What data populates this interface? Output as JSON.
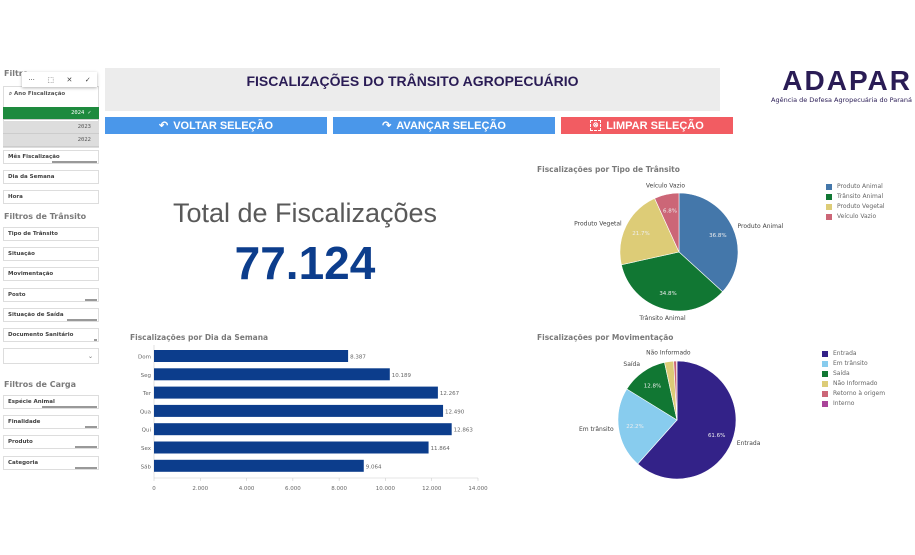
{
  "sidebar": {
    "title": "Filtro",
    "listbox": {
      "search_label": "Ano Fiscalização",
      "items": [
        {
          "label": "2024",
          "selected": true
        },
        {
          "label": "2023",
          "selected": false
        },
        {
          "label": "2022",
          "selected": false
        }
      ]
    },
    "toolbar": {
      "more": "···",
      "select": "⬚",
      "cancel": "✕",
      "confirm": "✓"
    },
    "filters": [
      "Mês Fiscalização",
      "Dia da Semana",
      "Hora"
    ],
    "transit_title": "Filtros de Trânsito",
    "transit_filters": [
      "Tipo de Trânsito",
      "Situação",
      "Movimentação",
      "Posto",
      "Situação de Saída",
      "Documento Sanitário"
    ],
    "dropdown_value": "",
    "cargo_title": "Filtros de Carga",
    "cargo_filters": [
      "Espécie Animal",
      "Finalidade",
      "Produto",
      "Categoria"
    ]
  },
  "header": {
    "title": "FISCALIZAÇÕES DO TRÂNSITO AGROPECUÁRIO"
  },
  "logo": {
    "name": "ADAPAR",
    "subtitle": "Agência de Defesa Agropecuária do Paraná"
  },
  "buttons": {
    "back": "VOLTAR SELEÇÃO",
    "forward": "AVANÇAR SELEÇÃO",
    "clear": "LIMPAR SELEÇÃO"
  },
  "colors": {
    "green": "#1e8a3e",
    "blue_btn": "#4a97ea",
    "red_btn": "#f25c62",
    "navy": "#0c3d8c",
    "title_bg": "#ececec"
  },
  "kpi": {
    "label": "Total de Fiscalizações",
    "value": "77.124"
  },
  "chart_data": [
    {
      "type": "bar",
      "orientation": "horizontal",
      "title": "Fiscalizações por Dia da Semana",
      "categories": [
        "Dom",
        "Seg",
        "Ter",
        "Qua",
        "Qui",
        "Sex",
        "Sáb"
      ],
      "values": [
        8387,
        10189,
        12267,
        12490,
        12863,
        11864,
        9064
      ],
      "value_labels": [
        "8.387",
        "10.189",
        "12.267",
        "12.490",
        "12.863",
        "11.864",
        "9.064"
      ],
      "xlim": [
        0,
        14000
      ],
      "ticks": [
        "0",
        "2.000",
        "4.000",
        "6.000",
        "8.000",
        "10.000",
        "12.000",
        "14.000"
      ],
      "color": "#0c3d8c"
    },
    {
      "type": "pie",
      "title": "Fiscalizações por Tipo de Trânsito",
      "legend": "right",
      "slices": [
        {
          "name": "Produto Animal",
          "value": 36.8,
          "label": "36.8%",
          "color": "#4477aa"
        },
        {
          "name": "Trânsito Animal",
          "value": 34.8,
          "label": "34.8%",
          "color": "#117733"
        },
        {
          "name": "Produto Vegetal",
          "value": 21.7,
          "label": "21.7%",
          "color": "#ddcc77"
        },
        {
          "name": "Veículo Vazio",
          "value": 6.8,
          "label": "6.8%",
          "color": "#cc6677"
        }
      ]
    },
    {
      "type": "pie",
      "title": "Fiscalizações por Movimentação",
      "legend": "right",
      "slices": [
        {
          "name": "Entrada",
          "value": 61.6,
          "label": "61.6%",
          "color": "#332288"
        },
        {
          "name": "Em trânsito",
          "value": 22.2,
          "label": "22.2%",
          "color": "#88ccee"
        },
        {
          "name": "Saída",
          "value": 12.8,
          "label": "12.8%",
          "color": "#117733"
        },
        {
          "name": "Não Informado",
          "value": 2.5,
          "label": "",
          "color": "#ddcc77"
        },
        {
          "name": "Retorno à origem",
          "value": 0.8,
          "label": "",
          "color": "#cc6677"
        },
        {
          "name": "Interno",
          "value": 0.1,
          "label": "",
          "color": "#aa4499"
        }
      ]
    }
  ]
}
